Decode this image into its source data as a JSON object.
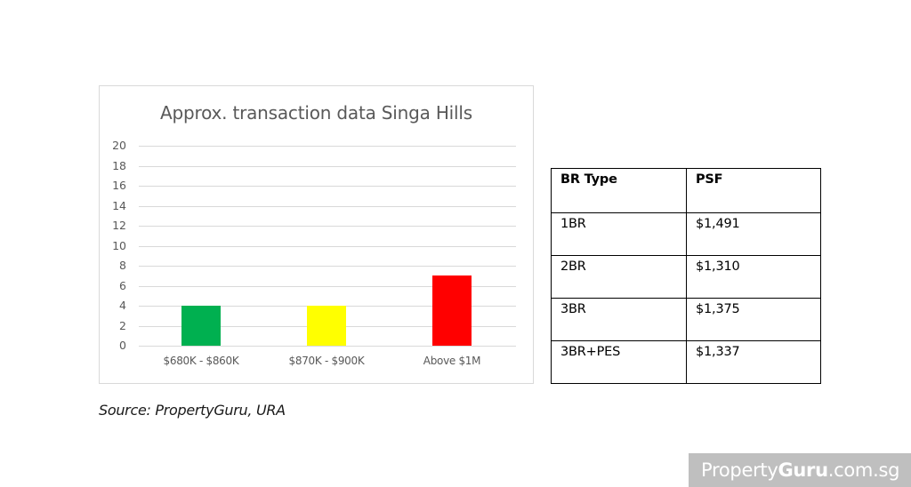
{
  "chart_data": {
    "type": "bar",
    "title": "Approx. transaction data Singa Hills",
    "categories": [
      "$680K - $860K",
      "$870K - $900K",
      "Above $1M"
    ],
    "values": [
      4,
      4,
      7
    ],
    "colors": [
      "#00b050",
      "#ffff00",
      "#ff0000"
    ],
    "xlabel": "",
    "ylabel": "",
    "ylim": [
      0,
      20
    ],
    "yticks": [
      0,
      2,
      4,
      6,
      8,
      10,
      12,
      14,
      16,
      18,
      20
    ],
    "grid": true,
    "legend": null
  },
  "table": {
    "headers": [
      "BR Type",
      "PSF"
    ],
    "rows": [
      [
        "1BR",
        "$1,491"
      ],
      [
        "2BR",
        "$1,310"
      ],
      [
        "3BR",
        "$1,375"
      ],
      [
        "3BR+PES",
        "$1,337"
      ]
    ]
  },
  "source": "Source: PropertyGuru, URA",
  "brand": {
    "prefix": "Property",
    "bold": "Guru",
    "suffix": ".com.sg",
    "background": "#bfbfbf"
  }
}
